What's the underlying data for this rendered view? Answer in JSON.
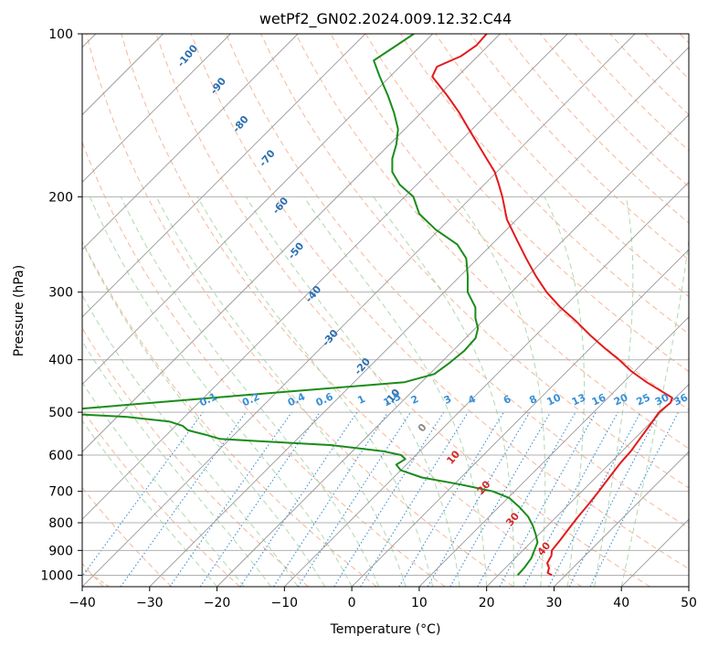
{
  "chart_data": {
    "type": "line",
    "title": "wetPf2_GN02.2024.009.12.32.C44",
    "xlabel": "Temperature (°C)",
    "ylabel": "Pressure (hPa)",
    "xlim": [
      -40,
      50
    ],
    "ylim": [
      1050,
      100
    ],
    "y_scale": "log",
    "x_ticks": [
      "−40",
      "−30",
      "−20",
      "−10",
      "0",
      "10",
      "20",
      "30",
      "40",
      "50"
    ],
    "y_ticks": [
      "100",
      "200",
      "300",
      "400",
      "500",
      "600",
      "700",
      "800",
      "900",
      "1000"
    ],
    "grid": true,
    "colors": {
      "temperature": "#e41a1c",
      "dewpoint": "#1a8c1a",
      "isotherm": "#999999",
      "dry_adiabat": "#f4a582",
      "moist_adiabat": "#a6d5a6",
      "mixing_ratio": "#3a8fd6",
      "label_blue": "#2a6fb0",
      "label_red": "#d62728",
      "label_gray": "#888888",
      "bound": "#d2b48c"
    },
    "series": [
      {
        "name": "Temperature",
        "points": [
          [
            1000,
            28
          ],
          [
            990,
            27
          ],
          [
            970,
            26.5
          ],
          [
            950,
            25.5
          ],
          [
            920,
            25
          ],
          [
            900,
            24.3
          ],
          [
            860,
            24
          ],
          [
            820,
            23.6
          ],
          [
            780,
            23.2
          ],
          [
            740,
            22.9
          ],
          [
            700,
            22.5
          ],
          [
            660,
            22
          ],
          [
            620,
            21.5
          ],
          [
            590,
            21.3
          ],
          [
            560,
            20.8
          ],
          [
            530,
            20.3
          ],
          [
            500,
            19.7
          ],
          [
            480,
            20
          ],
          [
            470,
            19.5
          ],
          [
            455,
            16.5
          ],
          [
            440,
            13.4
          ],
          [
            420,
            9.5
          ],
          [
            400,
            6.0
          ],
          [
            380,
            2.0
          ],
          [
            360,
            -2.0
          ],
          [
            340,
            -6.0
          ],
          [
            320,
            -10.5
          ],
          [
            300,
            -14.8
          ],
          [
            280,
            -18.8
          ],
          [
            260,
            -22.8
          ],
          [
            240,
            -27.0
          ],
          [
            220,
            -31.5
          ],
          [
            200,
            -35.5
          ],
          [
            190,
            -37.8
          ],
          [
            180,
            -40.3
          ],
          [
            170,
            -43.5
          ],
          [
            160,
            -46.9
          ],
          [
            150,
            -50.5
          ],
          [
            140,
            -54.3
          ],
          [
            130,
            -58.7
          ],
          [
            120,
            -63.7
          ],
          [
            115,
            -64.5
          ],
          [
            110,
            -62.5
          ],
          [
            105,
            -61.8
          ],
          [
            100,
            -62.0
          ]
        ]
      },
      {
        "name": "Dewpoint",
        "points": [
          [
            1000,
            22.9
          ],
          [
            970,
            22.8
          ],
          [
            930,
            22.4
          ],
          [
            900,
            21.7
          ],
          [
            870,
            21.0
          ],
          [
            840,
            19.5
          ],
          [
            810,
            17.8
          ],
          [
            780,
            15.8
          ],
          [
            750,
            13.2
          ],
          [
            720,
            10.2
          ],
          [
            700,
            6.8
          ],
          [
            680,
            1.0
          ],
          [
            660,
            -5.8
          ],
          [
            640,
            -10.0
          ],
          [
            625,
            -11.5
          ],
          [
            610,
            -11.0
          ],
          [
            600,
            -12.2
          ],
          [
            590,
            -15.5
          ],
          [
            575,
            -24.0
          ],
          [
            565,
            -36.0
          ],
          [
            560,
            -41.5
          ],
          [
            550,
            -44.3
          ],
          [
            540,
            -47.5
          ],
          [
            530,
            -48.9
          ],
          [
            520,
            -51.6
          ],
          [
            510,
            -58.5
          ],
          [
            500,
            -72.4
          ],
          [
            470,
            -48.6
          ],
          [
            440,
            -22.5
          ],
          [
            425,
            -19.3
          ],
          [
            405,
            -18.7
          ],
          [
            385,
            -18.3
          ],
          [
            365,
            -18.5
          ],
          [
            350,
            -19.6
          ],
          [
            335,
            -21.5
          ],
          [
            320,
            -23.1
          ],
          [
            300,
            -26.5
          ],
          [
            280,
            -28.9
          ],
          [
            260,
            -31.7
          ],
          [
            245,
            -35.1
          ],
          [
            230,
            -40.5
          ],
          [
            215,
            -45.3
          ],
          [
            200,
            -48.7
          ],
          [
            190,
            -52.5
          ],
          [
            180,
            -55.5
          ],
          [
            170,
            -57.5
          ],
          [
            160,
            -59.0
          ],
          [
            150,
            -61.0
          ],
          [
            140,
            -64.0
          ],
          [
            130,
            -67.5
          ],
          [
            120,
            -71.5
          ],
          [
            112,
            -74.8
          ],
          [
            106,
            -73.8
          ],
          [
            100,
            -72.8
          ]
        ]
      }
    ],
    "dry_adiabat_labels": [
      "-100",
      "-90",
      "-80",
      "-70",
      "-60",
      "-50",
      "-40",
      "-30",
      "-20",
      "-10",
      "0",
      "10",
      "20",
      "30",
      "40"
    ],
    "mixing_ratio_labels": [
      "0.1",
      "0.2",
      "0.4",
      "0.6",
      "1",
      "1.5",
      "2",
      "3",
      "4",
      "6",
      "8",
      "10",
      "13",
      "16",
      "20",
      "25",
      "30",
      "36"
    ]
  }
}
